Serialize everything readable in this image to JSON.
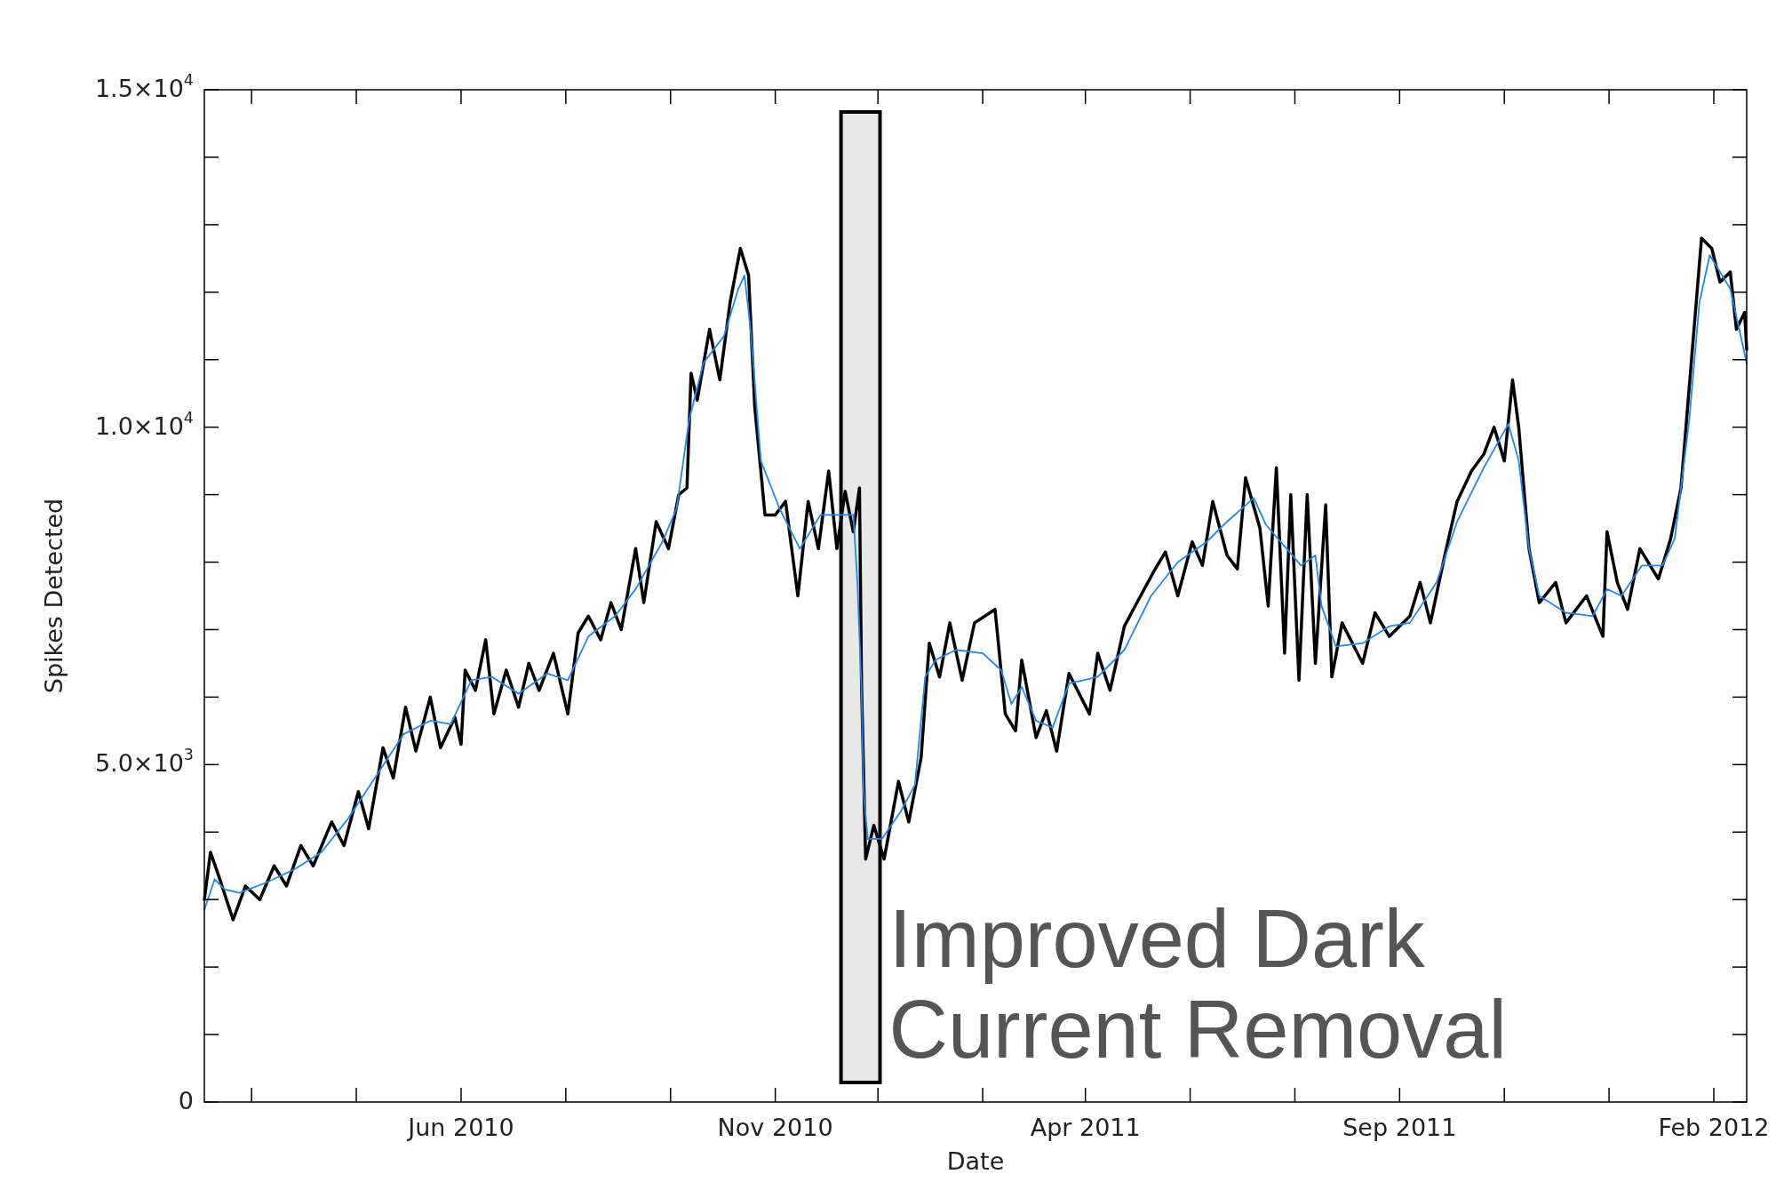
{
  "chart_data": {
    "type": "line",
    "xlabel": "Date",
    "ylabel": "Spikes Detected",
    "xlim": [
      "2010-01-27",
      "2012-02-17"
    ],
    "xticks": [
      {
        "value": "2010-02-19",
        "label": null
      },
      {
        "value": "2010-04-11",
        "label": null
      },
      {
        "value": "2010-06-01",
        "label": "Jun 2010"
      },
      {
        "value": "2010-07-22",
        "label": null
      },
      {
        "value": "2010-09-11",
        "label": null
      },
      {
        "value": "2010-11-01",
        "label": "Nov 2010"
      },
      {
        "value": "2010-12-21",
        "label": null
      },
      {
        "value": "2011-02-10",
        "label": null
      },
      {
        "value": "2011-04-01",
        "label": "Apr 2011"
      },
      {
        "value": "2011-05-22",
        "label": null
      },
      {
        "value": "2011-07-12",
        "label": null
      },
      {
        "value": "2011-09-01",
        "label": "Sep 2011"
      },
      {
        "value": "2011-10-22",
        "label": null
      },
      {
        "value": "2011-12-12",
        "label": null
      },
      {
        "value": "2012-02-01",
        "label": "Feb 2012"
      }
    ],
    "ylim": [
      0,
      15000
    ],
    "yticks": [
      {
        "value": 0,
        "label": "0"
      },
      {
        "value": 1000,
        "label": null
      },
      {
        "value": 2000,
        "label": null
      },
      {
        "value": 3000,
        "label": null
      },
      {
        "value": 4000,
        "label": null
      },
      {
        "value": 5000,
        "label": "5.0×10$^{3}$"
      },
      {
        "value": 6000,
        "label": null
      },
      {
        "value": 7000,
        "label": null
      },
      {
        "value": 8000,
        "label": null
      },
      {
        "value": 9000,
        "label": null
      },
      {
        "value": 10000,
        "label": "1.0×10$^{4}$"
      },
      {
        "value": 11000,
        "label": null
      },
      {
        "value": 12000,
        "label": null
      },
      {
        "value": 13000,
        "label": null
      },
      {
        "value": 14000,
        "label": null
      },
      {
        "value": 15000,
        "label": "1.5×10$^{4}$"
      }
    ],
    "grid": false,
    "marker": "none",
    "line_style": "solid",
    "bands": [
      {
        "axis": "x",
        "from": "2010-12-03",
        "to": "2010-12-22",
        "label": "Improved Dark Current Removal",
        "color": "#e8e8e8"
      }
    ],
    "series": [
      {
        "color": "#000000",
        "x": [
          "2010-01-27",
          "2010-01-30",
          "2010-02-03",
          "2010-02-10",
          "2010-02-16",
          "2010-02-23",
          "2010-03-02",
          "2010-03-08",
          "2010-03-15",
          "2010-03-21",
          "2010-03-30",
          "2010-04-05",
          "2010-04-12",
          "2010-04-17",
          "2010-04-24",
          "2010-04-29",
          "2010-05-05",
          "2010-05-10",
          "2010-05-17",
          "2010-05-22",
          "2010-05-29",
          "2010-06-01",
          "2010-06-03",
          "2010-06-08",
          "2010-06-13",
          "2010-06-17",
          "2010-06-23",
          "2010-06-29",
          "2010-07-04",
          "2010-07-09",
          "2010-07-16",
          "2010-07-23",
          "2010-07-28",
          "2010-08-02",
          "2010-08-08",
          "2010-08-13",
          "2010-08-18",
          "2010-08-25",
          "2010-08-29",
          "2010-09-04",
          "2010-09-10",
          "2010-09-15",
          "2010-09-19",
          "2010-09-21",
          "2010-09-24",
          "2010-09-30",
          "2010-10-05",
          "2010-10-10",
          "2010-10-15",
          "2010-10-19",
          "2010-10-22",
          "2010-10-27",
          "2010-11-01",
          "2010-11-06",
          "2010-11-12",
          "2010-11-17",
          "2010-11-22",
          "2010-11-27",
          "2010-12-01",
          "2010-12-05",
          "2010-12-09",
          "2010-12-12",
          "2010-12-13",
          "2010-12-15",
          "2010-12-19",
          "2010-12-24",
          "2010-12-31",
          "2011-01-05",
          "2011-01-11",
          "2011-01-15",
          "2011-01-20",
          "2011-01-25",
          "2011-01-31",
          "2011-02-06",
          "2011-02-16",
          "2011-02-21",
          "2011-02-26",
          "2011-03-01",
          "2011-03-08",
          "2011-03-13",
          "2011-03-18",
          "2011-03-24",
          "2011-04-03",
          "2011-04-07",
          "2011-04-13",
          "2011-04-20",
          "2011-04-27",
          "2011-05-05",
          "2011-05-10",
          "2011-05-16",
          "2011-05-23",
          "2011-05-28",
          "2011-06-02",
          "2011-06-09",
          "2011-06-14",
          "2011-06-18",
          "2011-06-25",
          "2011-06-29",
          "2011-07-03",
          "2011-07-07",
          "2011-07-10",
          "2011-07-14",
          "2011-07-18",
          "2011-07-22",
          "2011-07-27",
          "2011-07-30",
          "2011-08-04",
          "2011-08-14",
          "2011-08-20",
          "2011-08-27",
          "2011-09-06",
          "2011-09-11",
          "2011-09-16",
          "2011-09-23",
          "2011-09-29",
          "2011-10-06",
          "2011-10-12",
          "2011-10-17",
          "2011-10-22",
          "2011-10-26",
          "2011-10-29",
          "2011-11-03",
          "2011-11-08",
          "2011-11-16",
          "2011-11-21",
          "2011-12-01",
          "2011-12-09",
          "2011-12-11",
          "2011-12-16",
          "2011-12-21",
          "2011-12-27",
          "2012-01-05",
          "2012-01-11",
          "2012-01-16",
          "2012-01-21",
          "2012-01-26",
          "2012-01-31",
          "2012-02-04",
          "2012-02-09",
          "2012-02-12",
          "2012-02-16",
          "2012-02-17"
        ],
        "values": [
          3000,
          3700,
          3350,
          2700,
          3200,
          3000,
          3500,
          3200,
          3800,
          3500,
          4150,
          3800,
          4600,
          4050,
          5250,
          4800,
          5850,
          5200,
          6000,
          5250,
          5700,
          5300,
          6400,
          6100,
          6850,
          5750,
          6400,
          5850,
          6500,
          6100,
          6650,
          5750,
          6950,
          7200,
          6850,
          7400,
          7000,
          8200,
          7400,
          8600,
          8200,
          9000,
          9100,
          10800,
          10400,
          11450,
          10700,
          11850,
          12650,
          12250,
          10300,
          8700,
          8700,
          8900,
          7500,
          8900,
          8200,
          9350,
          8200,
          9050,
          8450,
          9100,
          6200,
          3600,
          4100,
          3600,
          4750,
          4150,
          5100,
          6800,
          6300,
          7100,
          6250,
          7100,
          7300,
          5750,
          5500,
          6550,
          5400,
          5800,
          5200,
          6350,
          5750,
          6650,
          6100,
          7050,
          7450,
          7900,
          8150,
          7500,
          8300,
          7950,
          8900,
          8100,
          7900,
          9250,
          8500,
          7350,
          9400,
          6650,
          9000,
          6250,
          9000,
          6500,
          8850,
          6300,
          7100,
          6500,
          7250,
          6900,
          7200,
          7700,
          7100,
          8100,
          8900,
          9350,
          9600,
          10000,
          9500,
          10700,
          10000,
          8200,
          7400,
          7700,
          7100,
          7500,
          6900,
          8450,
          7700,
          7300,
          8200,
          7750,
          8350,
          9100,
          10950,
          12800,
          12650,
          12150,
          12300,
          11450,
          11700,
          11150
        ]
      },
      {
        "color": "#1e88f0",
        "x": [
          "2010-01-27",
          "2010-02-01",
          "2010-02-06",
          "2010-02-13",
          "2010-02-26",
          "2010-03-12",
          "2010-03-25",
          "2010-04-07",
          "2010-04-20",
          "2010-05-04",
          "2010-05-17",
          "2010-05-27",
          "2010-06-06",
          "2010-06-16",
          "2010-06-29",
          "2010-07-13",
          "2010-07-23",
          "2010-08-02",
          "2010-08-15",
          "2010-08-25",
          "2010-09-07",
          "2010-09-14",
          "2010-09-20",
          "2010-09-27",
          "2010-10-07",
          "2010-10-14",
          "2010-10-17",
          "2010-10-20",
          "2010-10-25",
          "2010-11-03",
          "2010-11-13",
          "2010-11-23",
          "2010-12-03",
          "2010-12-09",
          "2010-12-11",
          "2010-12-13",
          "2010-12-14",
          "2010-12-16",
          "2010-12-23",
          "2011-01-01",
          "2011-01-08",
          "2011-01-13",
          "2011-01-18",
          "2011-01-28",
          "2011-02-10",
          "2011-02-19",
          "2011-02-24",
          "2011-03-01",
          "2011-03-08",
          "2011-03-16",
          "2011-03-24",
          "2011-04-07",
          "2011-04-20",
          "2011-05-03",
          "2011-05-16",
          "2011-05-30",
          "2011-06-09",
          "2011-06-22",
          "2011-06-28",
          "2011-07-08",
          "2011-07-15",
          "2011-07-22",
          "2011-07-25",
          "2011-08-01",
          "2011-08-14",
          "2011-08-27",
          "2011-09-06",
          "2011-09-19",
          "2011-09-29",
          "2011-10-12",
          "2011-10-24",
          "2011-10-29",
          "2011-11-03",
          "2011-11-08",
          "2011-11-21",
          "2011-12-04",
          "2011-12-11",
          "2011-12-18",
          "2011-12-28",
          "2012-01-07",
          "2012-01-13",
          "2012-01-20",
          "2012-01-25",
          "2012-01-30",
          "2012-02-09",
          "2012-02-17"
        ],
        "values": [
          2850,
          3300,
          3150,
          3100,
          3250,
          3450,
          3700,
          4200,
          4800,
          5450,
          5650,
          5600,
          6250,
          6300,
          6050,
          6350,
          6250,
          6900,
          7200,
          7600,
          8300,
          8800,
          10100,
          10950,
          11350,
          12050,
          12250,
          11450,
          9500,
          8800,
          8200,
          8700,
          8700,
          8700,
          7700,
          6100,
          4600,
          3900,
          3900,
          4300,
          4700,
          6300,
          6550,
          6700,
          6650,
          6400,
          5900,
          6150,
          5650,
          5550,
          6200,
          6300,
          6700,
          7500,
          8000,
          8300,
          8600,
          8950,
          8550,
          8200,
          7950,
          8100,
          7350,
          6750,
          6800,
          7050,
          7100,
          7700,
          8600,
          9400,
          10050,
          9500,
          8200,
          7500,
          7250,
          7200,
          7600,
          7500,
          7950,
          7950,
          8350,
          10100,
          11850,
          12550,
          12050,
          10950
        ]
      }
    ]
  }
}
